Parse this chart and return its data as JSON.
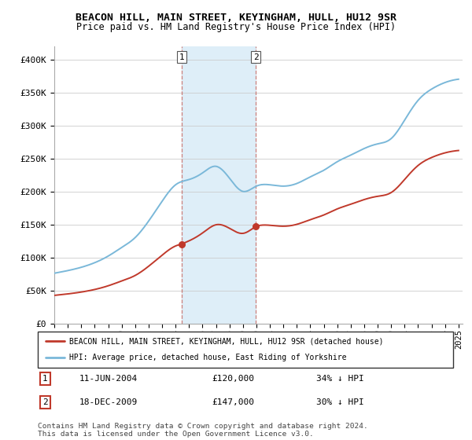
{
  "title": "BEACON HILL, MAIN STREET, KEYINGHAM, HULL, HU12 9SR",
  "subtitle": "Price paid vs. HM Land Registry's House Price Index (HPI)",
  "ylim": [
    0,
    420000
  ],
  "yticks": [
    0,
    50000,
    100000,
    150000,
    200000,
    250000,
    300000,
    350000,
    400000
  ],
  "ytick_labels": [
    "£0",
    "£50K",
    "£100K",
    "£150K",
    "£200K",
    "£250K",
    "£300K",
    "£350K",
    "£400K"
  ],
  "sale1_year": 2004.44,
  "sale1_price": 120000,
  "sale2_year": 2009.96,
  "sale2_price": 147000,
  "sale1_date": "11-JUN-2004",
  "sale1_pct": "34% ↓ HPI",
  "sale2_date": "18-DEC-2009",
  "sale2_pct": "30% ↓ HPI",
  "hpi_color": "#7ab8d9",
  "price_color": "#c0392b",
  "vline_color": "#c0392b",
  "highlight_color": "#deeef8",
  "legend_label_price": "BEACON HILL, MAIN STREET, KEYINGHAM, HULL, HU12 9SR (detached house)",
  "legend_label_hpi": "HPI: Average price, detached house, East Riding of Yorkshire",
  "footnote": "Contains HM Land Registry data © Crown copyright and database right 2024.\nThis data is licensed under the Open Government Licence v3.0."
}
